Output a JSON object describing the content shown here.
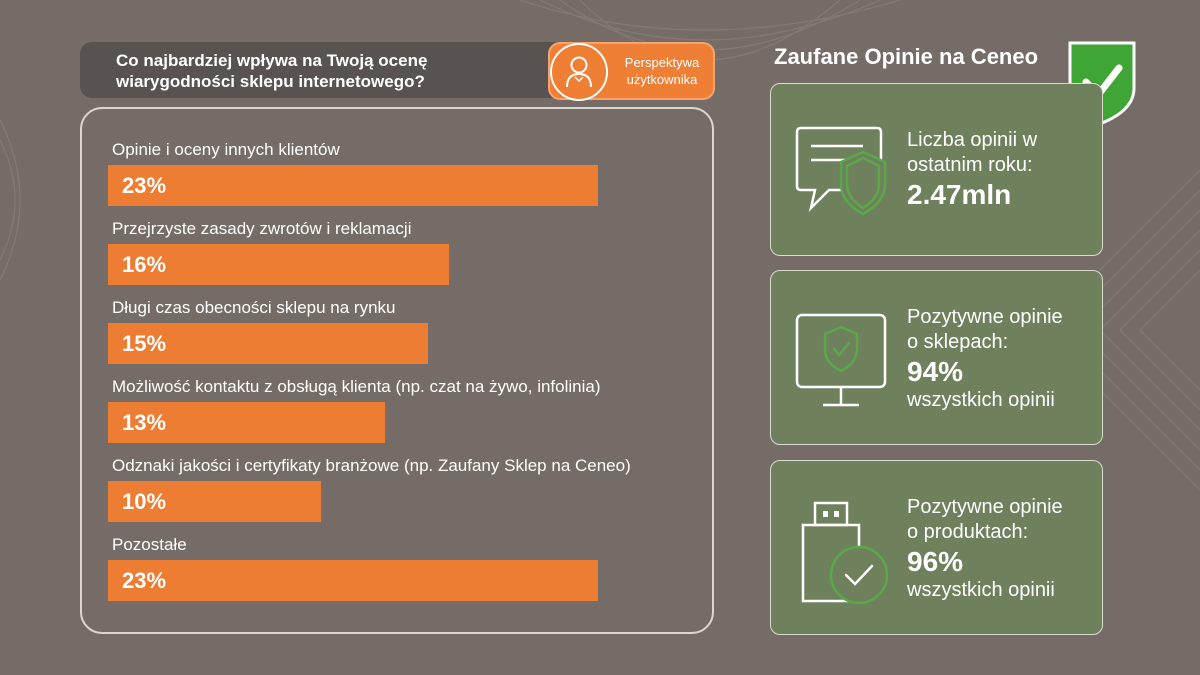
{
  "question": {
    "text_line1": "Co najbardziej wpływa na Twoją ocenę",
    "text_line2": "wiarygodności sklepu internetowego?"
  },
  "badge": {
    "line1": "Perspektywa",
    "line2": "użytkownika",
    "icon": "user-icon"
  },
  "chart_data": {
    "type": "bar",
    "orientation": "horizontal",
    "categories": [
      "Opinie i oceny innych klientów",
      "Przejrzyste zasady zwrotów i reklamacji",
      "Długi czas obecności sklepu na rynku",
      "Możliwość kontaktu z obsługą klienta (np. czat na żywo, infolinia)",
      "Odznaki jakości i certyfikaty branżowe (np. Zaufany Sklep na Ceneo)",
      "Pozostałe"
    ],
    "values": [
      23,
      16,
      15,
      13,
      10,
      23
    ],
    "value_labels": [
      "23%",
      "16%",
      "15%",
      "13%",
      "10%",
      "23%"
    ],
    "unit": "%",
    "bar_color": "#ec7d33",
    "grid": false
  },
  "right": {
    "title": "Zaufane Opinie na Ceneo",
    "cards": [
      {
        "line1": "Liczba opinii w",
        "line2": "ostatnim roku:",
        "value": "2.47mln",
        "line3": "",
        "icon": "chat-shield-icon"
      },
      {
        "line1": "Pozytywne opinie",
        "line2": "o sklepach:",
        "value": "94%",
        "line3": "wszystkich opinii",
        "icon": "monitor-shield-icon"
      },
      {
        "line1": "Pozytywne opinie",
        "line2": "o produktach:",
        "value": "96%",
        "line3": "wszystkich opinii",
        "icon": "product-check-icon"
      }
    ]
  },
  "colors": {
    "background": "#756c68",
    "accent_orange": "#ec7d33",
    "card_green": "#6f805d",
    "icon_green": "#5aa84a",
    "badge_green": "#3fa535"
  }
}
